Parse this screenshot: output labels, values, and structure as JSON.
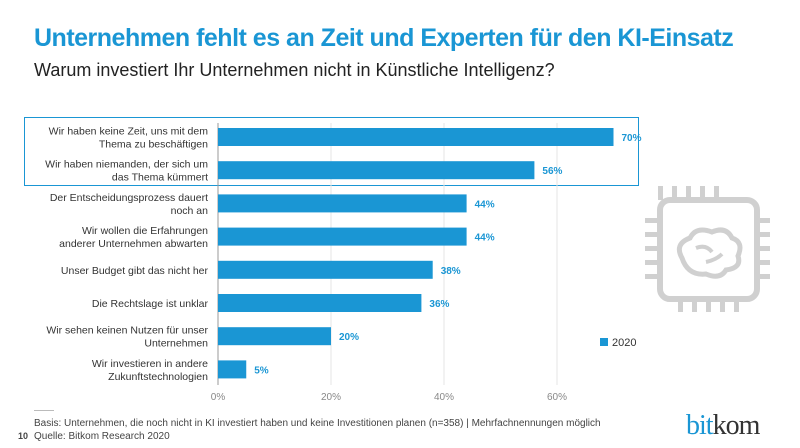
{
  "title": "Unternehmen fehlt es an Zeit und Experten für den KI-Einsatz",
  "subtitle": "Warum investiert Ihr Unternehmen nicht in Künstliche Intelligenz?",
  "chart_data": {
    "type": "bar",
    "orientation": "horizontal",
    "categories": [
      [
        "Wir haben keine Zeit, uns mit dem",
        "Thema zu beschäftigen"
      ],
      [
        "Wir haben niemanden, der sich um",
        "das Thema kümmert"
      ],
      [
        "Der Entscheidungsprozess dauert",
        "noch an"
      ],
      [
        "Wir wollen die Erfahrungen",
        "anderer Unternehmen abwarten"
      ],
      [
        "Unser Budget gibt das nicht her"
      ],
      [
        "Die Rechtslage ist unklar"
      ],
      [
        "Wir sehen keinen Nutzen für unser",
        "Unternehmen"
      ],
      [
        "Wir investieren in andere",
        "Zukunftstechnologien"
      ]
    ],
    "series": [
      {
        "name": "2020",
        "values": [
          70,
          56,
          44,
          44,
          38,
          36,
          20,
          5
        ],
        "color": "#1a96d4"
      }
    ],
    "data_labels": [
      "70%",
      "56%",
      "44%",
      "44%",
      "38%",
      "36%",
      "20%",
      "5%"
    ],
    "xticks": [
      "0%",
      "20%",
      "40%",
      "60%"
    ],
    "xlim": [
      0,
      75
    ],
    "grid": true,
    "legend": "right",
    "highlighted_categories": [
      0,
      1
    ]
  },
  "footer": {
    "basis": "Basis: Unternehmen, die noch nicht in KI investiert haben und keine Investitionen planen (n=358) | Mehrfachnennungen möglich",
    "source": "Quelle: Bitkom Research 2020",
    "page": "10"
  },
  "logo": {
    "bit": "bit",
    "kom": "kom"
  },
  "icon": "chip-brain-icon"
}
